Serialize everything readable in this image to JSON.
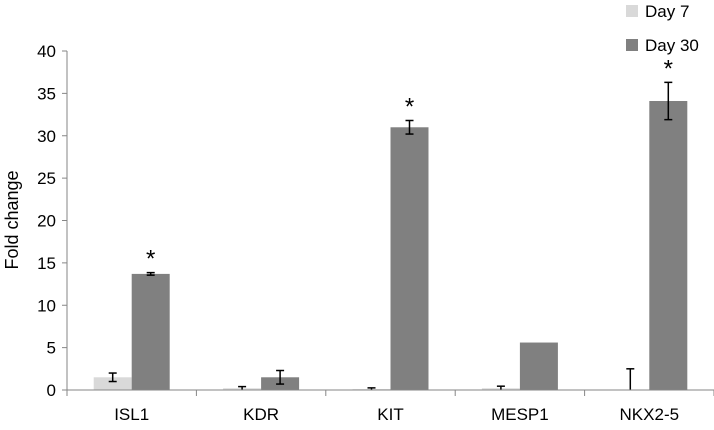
{
  "chart_data": {
    "type": "bar",
    "title": "",
    "xlabel": "",
    "ylabel": "Fold change",
    "ylim": [
      0,
      40
    ],
    "yticks": [
      0,
      5,
      10,
      15,
      20,
      25,
      30,
      35,
      40
    ],
    "grid": false,
    "legend_position": "top-right",
    "categories": [
      "ISL1",
      "KDR",
      "KIT",
      "MESP1",
      "NKX2-5"
    ],
    "series": [
      {
        "name": "Day 7",
        "color": "#d9d9d9",
        "values": [
          1.5,
          0.2,
          0.1,
          0.2,
          0.0
        ],
        "errors": [
          0.5,
          0.2,
          0.15,
          0.25,
          2.5
        ]
      },
      {
        "name": "Day 30",
        "color": "#808080",
        "values": [
          13.7,
          1.5,
          31.0,
          5.6,
          34.1
        ],
        "errors": [
          0.15,
          0.8,
          0.8,
          0.0,
          2.2
        ]
      }
    ],
    "annotations": [
      {
        "category": "ISL1",
        "series": "Day 30",
        "text": "*"
      },
      {
        "category": "KIT",
        "series": "Day 30",
        "text": "*"
      },
      {
        "category": "NKX2-5",
        "series": "Day 30",
        "text": "*"
      }
    ]
  }
}
